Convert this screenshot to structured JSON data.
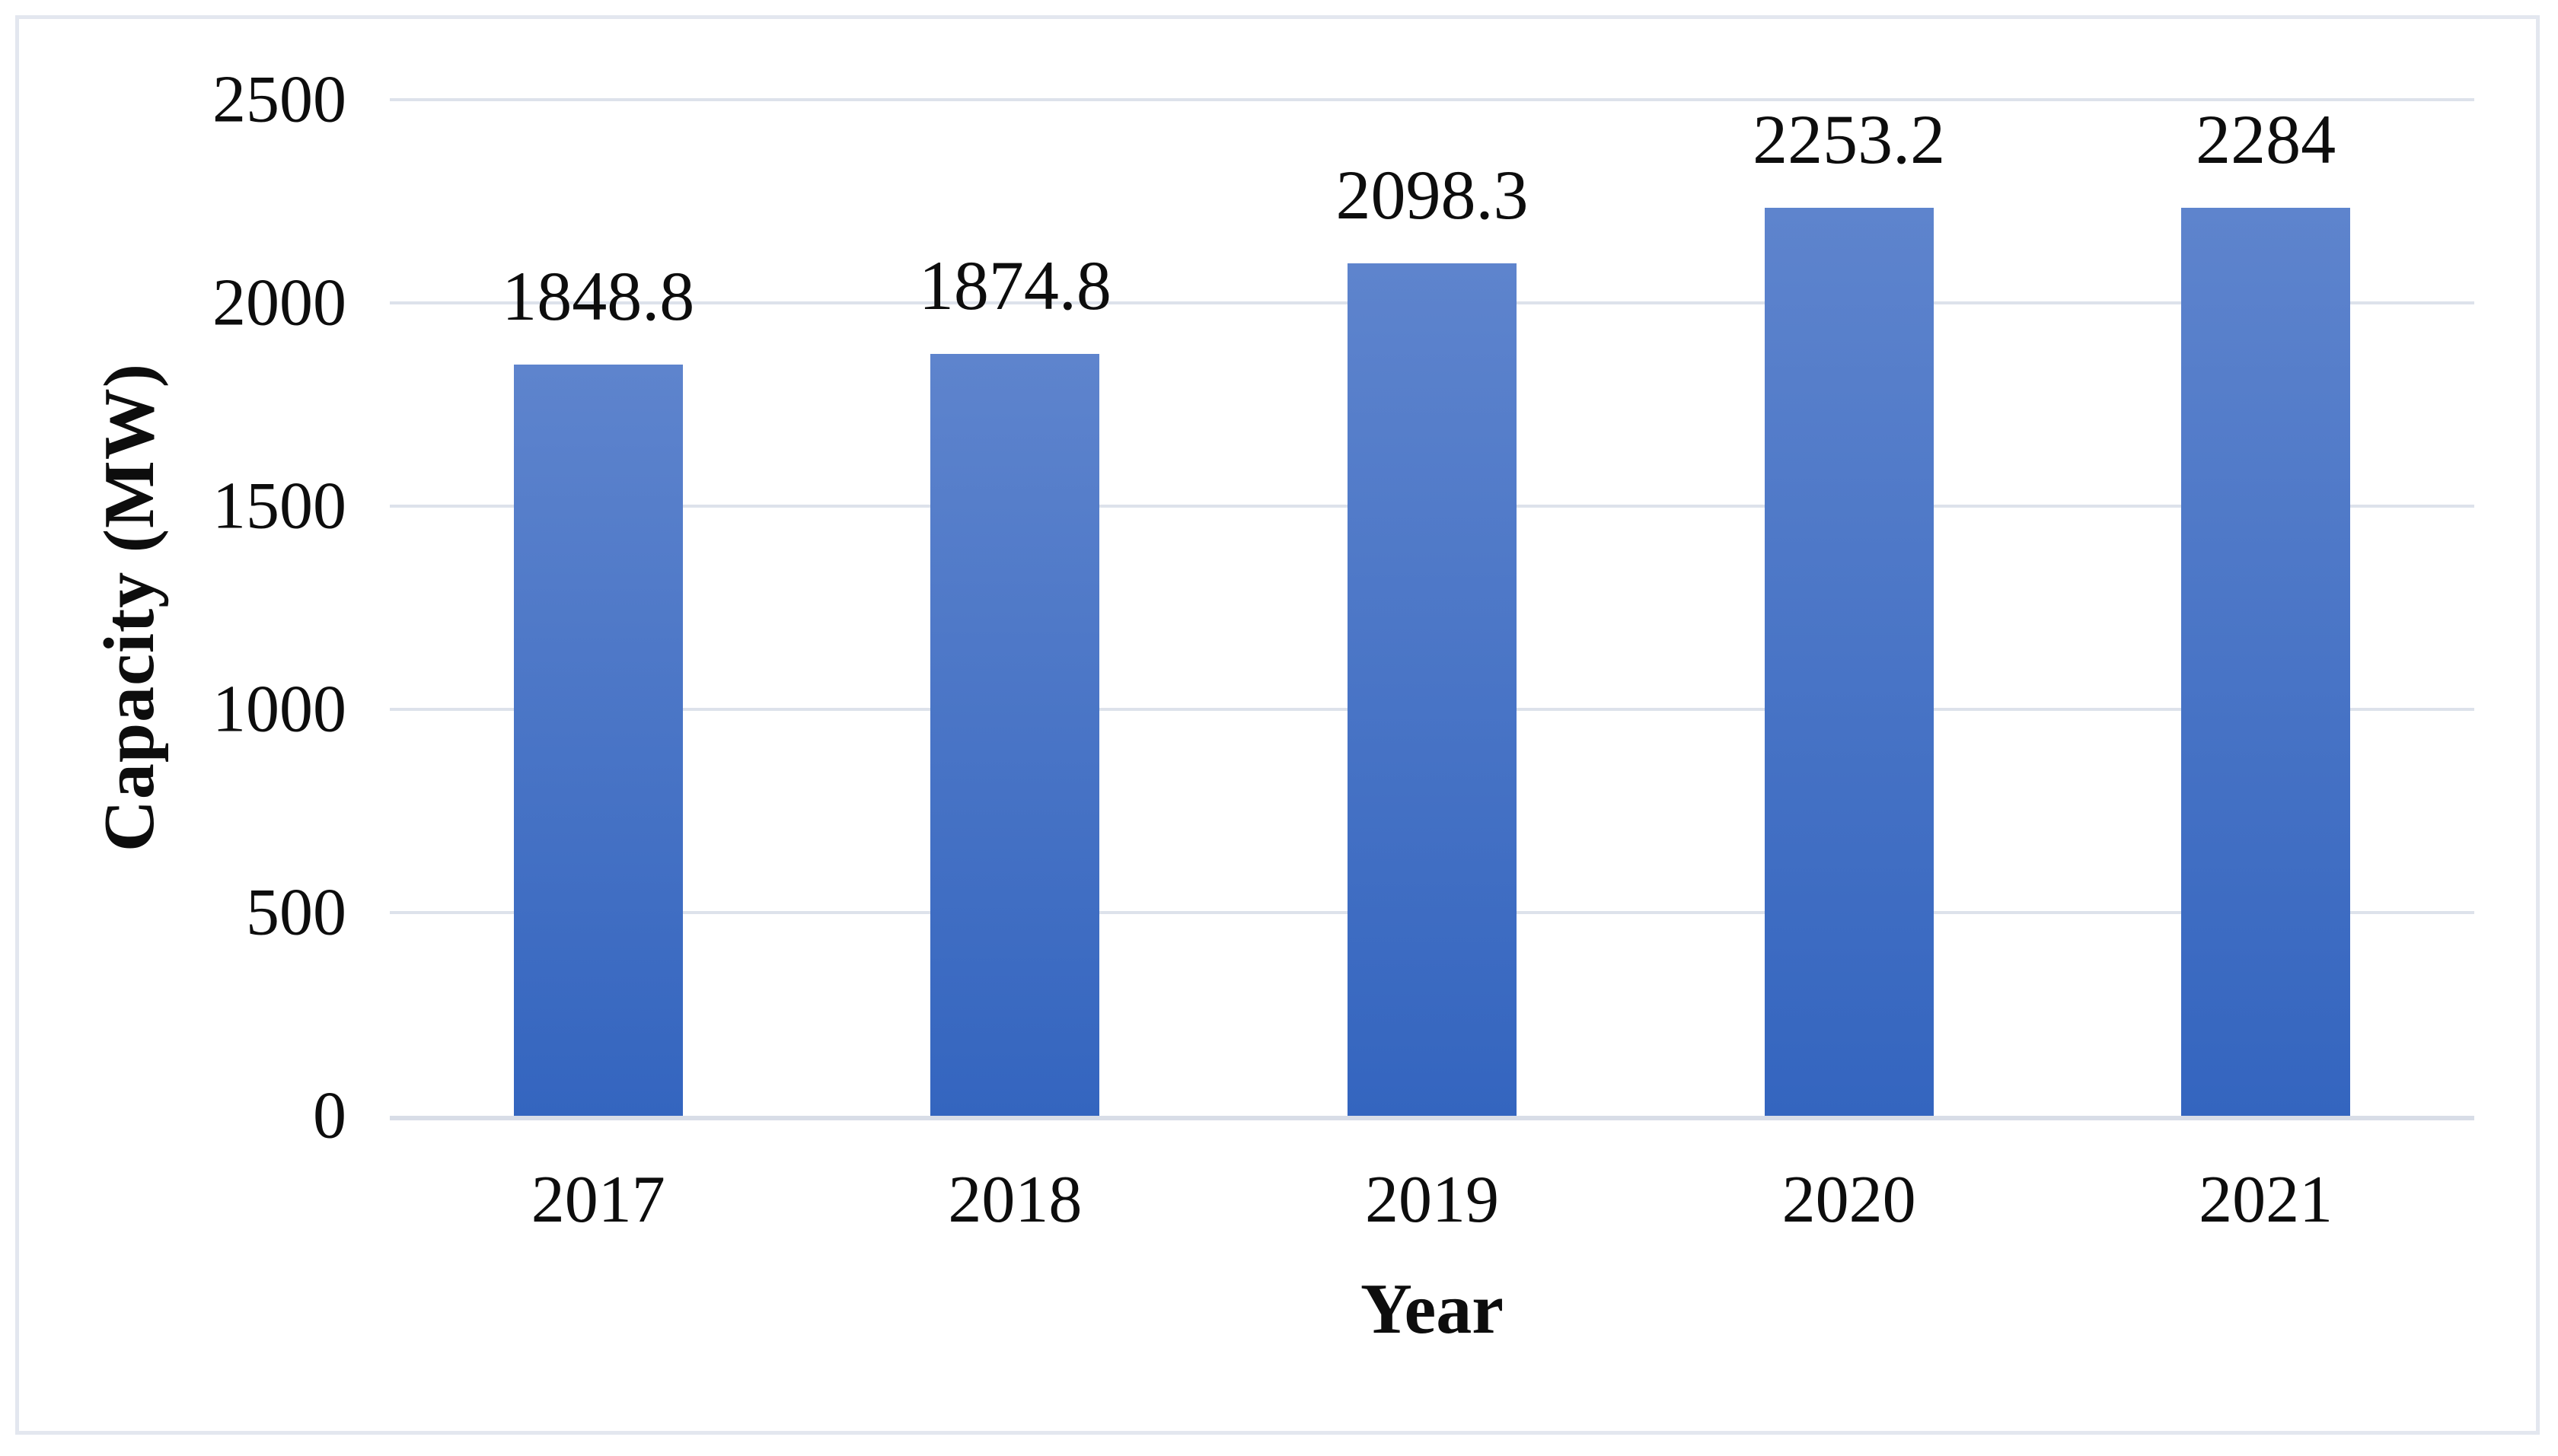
{
  "figure": {
    "background": "#ffffff",
    "border_color": "#e3e7ef"
  },
  "chart_data": {
    "type": "bar",
    "title": "",
    "categories": [
      "2017",
      "2018",
      "2019",
      "2020",
      "2021"
    ],
    "values": [
      1848.8,
      1874.8,
      2098.3,
      2253.2,
      2284
    ],
    "value_labels": [
      "1848.8",
      "1874.8",
      "2098.3",
      "2253.2",
      "2284"
    ],
    "xlabel": "Year",
    "ylabel": "Capacity (MW)",
    "ylim": [
      0,
      2500
    ],
    "ytick_step": 500,
    "ytick_labels": [
      "2500",
      "2000",
      "1500",
      "1000",
      "500",
      "0"
    ],
    "grid": "horizontal",
    "legend": "none",
    "data_labels_position": "above-bars",
    "bar_color_top": "#5e84cd",
    "bar_color_bottom": "#3465bf",
    "gridline_color": "#dde2eb",
    "axis_line_color": "#d8dde7",
    "text_color": "#0d0d0d"
  }
}
